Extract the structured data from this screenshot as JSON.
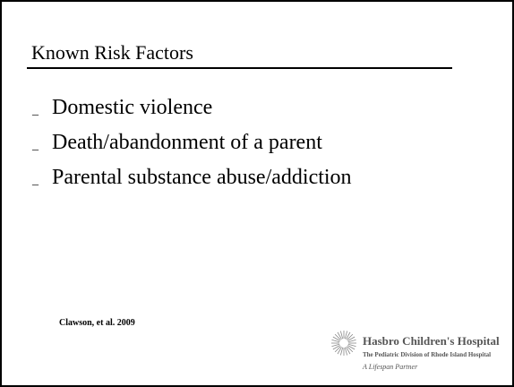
{
  "slide": {
    "title": "Known Risk Factors",
    "bullets": [
      {
        "marker": "_",
        "text": "Domestic violence"
      },
      {
        "marker": "_",
        "text": "Death/abandonment of a parent"
      },
      {
        "marker": "_",
        "text": "Parental substance abuse/addiction"
      }
    ],
    "citation": "Clawson, et al.  2009",
    "logo": {
      "name": "Hasbro Children's Hospital",
      "subtitle": "The Pediatric Division of Rhode Island Hospital",
      "tagline": "A Lifespan Partner"
    }
  }
}
